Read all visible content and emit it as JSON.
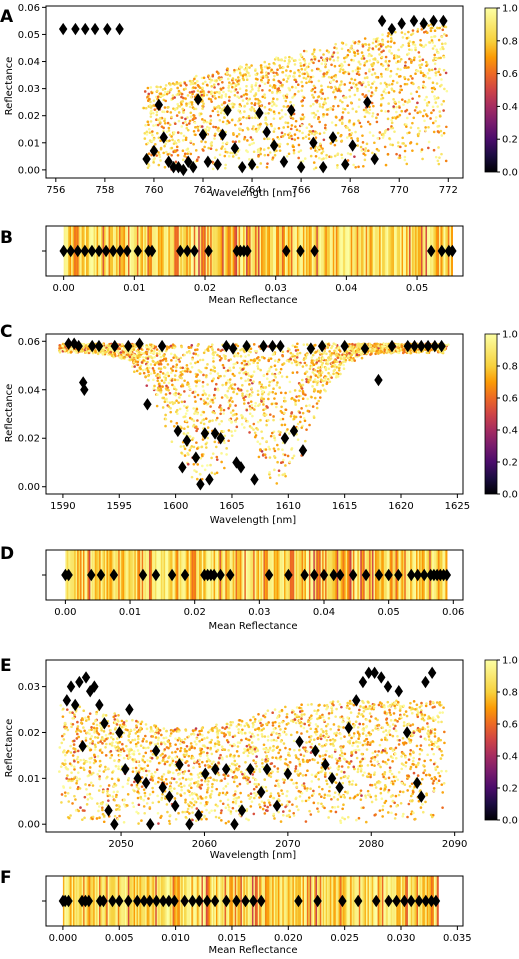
{
  "figure": {
    "colormap": "inferno",
    "marker_color": "#000000"
  },
  "chart_data": [
    {
      "id": "A",
      "panel_letter": "A",
      "type": "scatter",
      "xlabel": "Wavelength [nm]",
      "ylabel": "Reflectance",
      "xlim": [
        755.6,
        772.6
      ],
      "ylim": [
        -0.003,
        0.0605
      ],
      "xticks": [
        756,
        758,
        760,
        762,
        764,
        766,
        768,
        770,
        772
      ],
      "yticks": [
        0.0,
        0.01,
        0.02,
        0.03,
        0.04,
        0.05,
        0.06
      ],
      "ytick_labels": [
        "0.00",
        "0.01",
        "0.02",
        "0.03",
        "0.04",
        "0.05",
        "0.06"
      ],
      "colorbar": {
        "ticks": [
          0.0,
          0.2,
          0.4,
          0.6,
          0.8,
          1.0
        ],
        "labels": [
          "0.0",
          "0.2",
          "0.4",
          "0.6",
          "0.8",
          "1.0"
        ]
      },
      "selected_points": [
        [
          756.3,
          0.052
        ],
        [
          756.8,
          0.052
        ],
        [
          757.2,
          0.052
        ],
        [
          757.6,
          0.052
        ],
        [
          758.1,
          0.052
        ],
        [
          758.6,
          0.052
        ],
        [
          759.7,
          0.004
        ],
        [
          760.0,
          0.007
        ],
        [
          760.2,
          0.024
        ],
        [
          760.4,
          0.012
        ],
        [
          760.6,
          0.003
        ],
        [
          760.8,
          0.001
        ],
        [
          761.0,
          0.001
        ],
        [
          761.2,
          0.0
        ],
        [
          761.4,
          0.003
        ],
        [
          761.6,
          0.001
        ],
        [
          761.8,
          0.026
        ],
        [
          762.0,
          0.013
        ],
        [
          762.2,
          0.003
        ],
        [
          762.6,
          0.002
        ],
        [
          762.8,
          0.013
        ],
        [
          763.0,
          0.022
        ],
        [
          763.3,
          0.008
        ],
        [
          763.6,
          0.001
        ],
        [
          764.0,
          0.002
        ],
        [
          764.3,
          0.021
        ],
        [
          764.6,
          0.014
        ],
        [
          764.9,
          0.009
        ],
        [
          765.3,
          0.003
        ],
        [
          765.6,
          0.022
        ],
        [
          766.0,
          0.001
        ],
        [
          766.5,
          0.01
        ],
        [
          766.9,
          0.001
        ],
        [
          767.3,
          0.012
        ],
        [
          767.8,
          0.002
        ],
        [
          768.1,
          0.009
        ],
        [
          768.7,
          0.025
        ],
        [
          769.0,
          0.004
        ],
        [
          769.3,
          0.055
        ],
        [
          769.7,
          0.052
        ],
        [
          770.1,
          0.054
        ],
        [
          770.6,
          0.055
        ],
        [
          771.0,
          0.054
        ],
        [
          771.4,
          0.055
        ],
        [
          771.8,
          0.055
        ]
      ]
    },
    {
      "id": "B",
      "panel_letter": "B",
      "type": "strip",
      "xlabel": "Mean Reflectance",
      "xlim": [
        -0.0025,
        0.0565
      ],
      "xticks": [
        0.0,
        0.01,
        0.02,
        0.03,
        0.04,
        0.05
      ],
      "xtick_labels": [
        "0.00",
        "0.01",
        "0.02",
        "0.03",
        "0.04",
        "0.05"
      ],
      "band_range": [
        0.0,
        0.055
      ],
      "selected_values": [
        0.0,
        0.001,
        0.002,
        0.003,
        0.004,
        0.005,
        0.006,
        0.007,
        0.008,
        0.009,
        0.0105,
        0.012,
        0.0125,
        0.0165,
        0.0175,
        0.0185,
        0.0205,
        0.0245,
        0.025,
        0.0255,
        0.026,
        0.0315,
        0.0335,
        0.0355,
        0.052,
        0.0535,
        0.0545,
        0.055
      ]
    },
    {
      "id": "C",
      "panel_letter": "C",
      "type": "scatter",
      "xlabel": "Wavelength [nm]",
      "ylabel": "Reflectance",
      "xlim": [
        1588.5,
        1625.5
      ],
      "ylim": [
        -0.003,
        0.063
      ],
      "xticks": [
        1590,
        1595,
        1600,
        1605,
        1610,
        1615,
        1620,
        1625
      ],
      "yticks": [
        0.0,
        0.02,
        0.04,
        0.06
      ],
      "ytick_labels": [
        "0.00",
        "0.02",
        "0.04",
        "0.06"
      ],
      "colorbar": {
        "ticks": [
          0.0,
          0.2,
          0.4,
          0.6,
          0.8,
          1.0
        ],
        "labels": [
          "0.0",
          "0.2",
          "0.4",
          "0.6",
          "0.8",
          "1.0"
        ]
      },
      "selected_points": [
        [
          1590.5,
          0.059
        ],
        [
          1591.0,
          0.059
        ],
        [
          1591.4,
          0.058
        ],
        [
          1591.8,
          0.043
        ],
        [
          1591.9,
          0.04
        ],
        [
          1592.6,
          0.058
        ],
        [
          1593.2,
          0.058
        ],
        [
          1594.6,
          0.058
        ],
        [
          1595.8,
          0.058
        ],
        [
          1596.8,
          0.059
        ],
        [
          1597.5,
          0.034
        ],
        [
          1598.8,
          0.058
        ],
        [
          1600.2,
          0.023
        ],
        [
          1600.6,
          0.008
        ],
        [
          1601.0,
          0.019
        ],
        [
          1601.8,
          0.012
        ],
        [
          1602.2,
          0.001
        ],
        [
          1602.6,
          0.022
        ],
        [
          1603.0,
          0.003
        ],
        [
          1603.5,
          0.022
        ],
        [
          1604.0,
          0.02
        ],
        [
          1604.5,
          0.058
        ],
        [
          1605.1,
          0.057
        ],
        [
          1605.4,
          0.01
        ],
        [
          1605.8,
          0.008
        ],
        [
          1606.3,
          0.058
        ],
        [
          1607.0,
          0.003
        ],
        [
          1607.8,
          0.058
        ],
        [
          1608.6,
          0.058
        ],
        [
          1609.3,
          0.058
        ],
        [
          1609.7,
          0.02
        ],
        [
          1610.5,
          0.023
        ],
        [
          1611.3,
          0.015
        ],
        [
          1612.0,
          0.057
        ],
        [
          1613.0,
          0.058
        ],
        [
          1615.0,
          0.058
        ],
        [
          1616.8,
          0.057
        ],
        [
          1618.0,
          0.044
        ],
        [
          1619.2,
          0.058
        ],
        [
          1620.6,
          0.058
        ],
        [
          1621.2,
          0.058
        ],
        [
          1621.8,
          0.058
        ],
        [
          1622.4,
          0.058
        ],
        [
          1623.0,
          0.058
        ],
        [
          1623.6,
          0.058
        ]
      ]
    },
    {
      "id": "D",
      "panel_letter": "D",
      "type": "strip",
      "xlabel": "Mean Reflectance",
      "xlim": [
        -0.003,
        0.0615
      ],
      "xticks": [
        0.0,
        0.01,
        0.02,
        0.03,
        0.04,
        0.05,
        0.06
      ],
      "xtick_labels": [
        "0.00",
        "0.01",
        "0.02",
        "0.03",
        "0.04",
        "0.05",
        "0.06"
      ],
      "band_range": [
        0.0,
        0.059
      ],
      "selected_values": [
        0.0,
        0.0005,
        0.004,
        0.0055,
        0.0075,
        0.012,
        0.014,
        0.0165,
        0.0185,
        0.0215,
        0.022,
        0.0225,
        0.023,
        0.024,
        0.0255,
        0.0315,
        0.0345,
        0.037,
        0.0385,
        0.04,
        0.0415,
        0.0425,
        0.0445,
        0.0465,
        0.0485,
        0.05,
        0.0515,
        0.0535,
        0.0545,
        0.0555,
        0.0565,
        0.057,
        0.0575,
        0.058,
        0.0585,
        0.059
      ]
    },
    {
      "id": "E",
      "panel_letter": "E",
      "type": "scatter",
      "xlabel": "Wavelength [nm]",
      "ylabel": "Reflectance",
      "xlim": [
        2041.0,
        2091.0
      ],
      "ylim": [
        -0.0017,
        0.0358
      ],
      "xticks": [
        2050,
        2060,
        2070,
        2080,
        2090
      ],
      "yticks": [
        0.0,
        0.01,
        0.02,
        0.03
      ],
      "ytick_labels": [
        "0.00",
        "0.01",
        "0.02",
        "0.03"
      ],
      "colorbar": {
        "ticks": [
          0.0,
          0.2,
          0.4,
          0.6,
          0.8,
          1.0
        ],
        "labels": [
          "0.0",
          "0.2",
          "0.4",
          "0.6",
          "0.8",
          "1.0"
        ]
      },
      "selected_points": [
        [
          2043.5,
          0.027
        ],
        [
          2044.0,
          0.03
        ],
        [
          2044.5,
          0.026
        ],
        [
          2045.0,
          0.031
        ],
        [
          2045.4,
          0.017
        ],
        [
          2045.8,
          0.032
        ],
        [
          2046.3,
          0.029
        ],
        [
          2046.8,
          0.03
        ],
        [
          2047.4,
          0.026
        ],
        [
          2048.0,
          0.022
        ],
        [
          2048.5,
          0.003
        ],
        [
          2049.2,
          0.0
        ],
        [
          2049.8,
          0.02
        ],
        [
          2050.5,
          0.012
        ],
        [
          2051.0,
          0.025
        ],
        [
          2052.0,
          0.01
        ],
        [
          2053.0,
          0.009
        ],
        [
          2053.5,
          0.0
        ],
        [
          2054.2,
          0.016
        ],
        [
          2055.0,
          0.008
        ],
        [
          2055.8,
          0.006
        ],
        [
          2056.5,
          0.004
        ],
        [
          2057.0,
          0.013
        ],
        [
          2058.2,
          0.0
        ],
        [
          2059.3,
          0.002
        ],
        [
          2060.1,
          0.011
        ],
        [
          2061.3,
          0.012
        ],
        [
          2062.6,
          0.012
        ],
        [
          2063.6,
          0.0
        ],
        [
          2064.5,
          0.003
        ],
        [
          2065.5,
          0.012
        ],
        [
          2066.8,
          0.007
        ],
        [
          2067.5,
          0.012
        ],
        [
          2068.7,
          0.004
        ],
        [
          2070.0,
          0.011
        ],
        [
          2071.4,
          0.018
        ],
        [
          2073.3,
          0.016
        ],
        [
          2074.5,
          0.013
        ],
        [
          2075.3,
          0.01
        ],
        [
          2076.2,
          0.008
        ],
        [
          2077.3,
          0.021
        ],
        [
          2078.2,
          0.027
        ],
        [
          2079.0,
          0.031
        ],
        [
          2079.7,
          0.033
        ],
        [
          2080.4,
          0.033
        ],
        [
          2081.2,
          0.032
        ],
        [
          2082.0,
          0.03
        ],
        [
          2083.3,
          0.029
        ],
        [
          2084.3,
          0.02
        ],
        [
          2085.5,
          0.009
        ],
        [
          2086.0,
          0.006
        ],
        [
          2086.5,
          0.031
        ],
        [
          2087.3,
          0.033
        ]
      ]
    },
    {
      "id": "F",
      "panel_letter": "F",
      "type": "strip",
      "xlabel": "Mean Reflectance",
      "xlim": [
        -0.0015,
        0.0355
      ],
      "xticks": [
        0.0,
        0.005,
        0.01,
        0.015,
        0.02,
        0.025,
        0.03,
        0.035
      ],
      "xtick_labels": [
        "0.000",
        "0.005",
        "0.010",
        "0.015",
        "0.020",
        "0.025",
        "0.030",
        "0.035"
      ],
      "band_range": [
        0.0,
        0.0333
      ],
      "selected_values": [
        0.0,
        0.0002,
        0.0005,
        0.0017,
        0.002,
        0.0023,
        0.0033,
        0.0036,
        0.0044,
        0.005,
        0.0058,
        0.0066,
        0.0072,
        0.0077,
        0.0083,
        0.0089,
        0.0094,
        0.0099,
        0.0108,
        0.0115,
        0.0121,
        0.0128,
        0.0135,
        0.0145,
        0.0154,
        0.0162,
        0.0169,
        0.0176,
        0.0209,
        0.0226,
        0.0248,
        0.0262,
        0.0278,
        0.0289,
        0.0296,
        0.0303,
        0.0309,
        0.0316,
        0.0322,
        0.0327,
        0.0331
      ]
    }
  ]
}
